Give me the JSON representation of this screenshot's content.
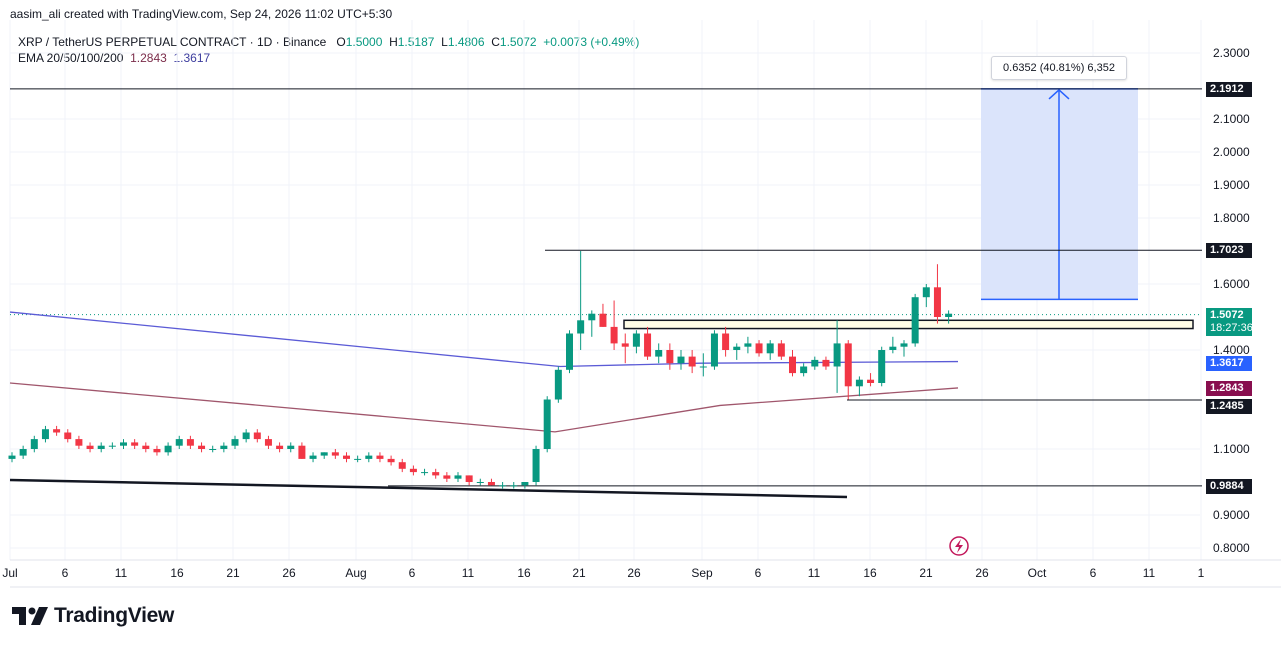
{
  "header": {
    "credit": "aasim_ali created with TradingView.com, Sep 24, 2026 11:02 UTC+5:30"
  },
  "legend": {
    "symbol": "XRP / TetherUS PERPETUAL CONTRACT · 1D · Binance",
    "o_label": "O",
    "o": "1.5000",
    "h_label": "H",
    "h": "1.5187",
    "l_label": "L",
    "l": "1.4806",
    "c_label": "C",
    "c": "1.5072",
    "change": "+0.0073 (+0.49%)",
    "ema_label": "EMA 20/50/100/200",
    "ema_a": "1.2843",
    "ema_b": "1.3617"
  },
  "measure": {
    "label": "0.6352 (40.81%) 6,352"
  },
  "price_labels": {
    "top_level": "2.1912",
    "resistance": "1.7023",
    "last_price": "1.5072",
    "countdown": "18:27:36",
    "ema_blue": "1.3617",
    "ema_maroon": "1.2843",
    "support": "1.2485",
    "base": "0.9884"
  },
  "brand": {
    "name": "TradingView"
  },
  "colors": {
    "up": "#089981",
    "down": "#f23645",
    "ema_blue": "#5b5bd6",
    "ema_maroon": "#a0566c",
    "target_fill": "#dbe4fb",
    "target_line": "#2962ff"
  },
  "chart_data": {
    "type": "candlestick",
    "y_axis_ticks": [
      "2.3000",
      "2.1000",
      "2.0000",
      "1.9000",
      "1.8000",
      "1.6000",
      "1.4000",
      "1.1000",
      "0.9000",
      "0.8000"
    ],
    "x_axis_ticks": [
      "Jul",
      "6",
      "11",
      "16",
      "21",
      "26",
      "Aug",
      "6",
      "11",
      "16",
      "21",
      "26",
      "Sep",
      "6",
      "11",
      "16",
      "21",
      "26",
      "Oct",
      "6",
      "11",
      "1"
    ],
    "ylim": [
      0.76,
      2.36
    ],
    "horizontal_levels": [
      2.1912,
      1.7023,
      1.2485,
      0.9884
    ],
    "candles": [
      [
        1.07,
        1.09,
        1.06,
        1.08
      ],
      [
        1.08,
        1.11,
        1.07,
        1.1
      ],
      [
        1.1,
        1.14,
        1.09,
        1.13
      ],
      [
        1.13,
        1.17,
        1.12,
        1.16
      ],
      [
        1.16,
        1.17,
        1.14,
        1.15
      ],
      [
        1.15,
        1.16,
        1.12,
        1.13
      ],
      [
        1.13,
        1.14,
        1.1,
        1.11
      ],
      [
        1.11,
        1.12,
        1.09,
        1.1
      ],
      [
        1.1,
        1.12,
        1.09,
        1.11
      ],
      [
        1.11,
        1.12,
        1.1,
        1.11
      ],
      [
        1.11,
        1.13,
        1.1,
        1.12
      ],
      [
        1.12,
        1.13,
        1.1,
        1.11
      ],
      [
        1.11,
        1.12,
        1.09,
        1.1
      ],
      [
        1.1,
        1.11,
        1.08,
        1.09
      ],
      [
        1.09,
        1.12,
        1.08,
        1.11
      ],
      [
        1.11,
        1.14,
        1.1,
        1.13
      ],
      [
        1.13,
        1.14,
        1.1,
        1.11
      ],
      [
        1.11,
        1.12,
        1.09,
        1.1
      ],
      [
        1.1,
        1.11,
        1.09,
        1.1
      ],
      [
        1.1,
        1.12,
        1.09,
        1.11
      ],
      [
        1.11,
        1.14,
        1.1,
        1.13
      ],
      [
        1.13,
        1.16,
        1.12,
        1.15
      ],
      [
        1.15,
        1.16,
        1.12,
        1.13
      ],
      [
        1.13,
        1.14,
        1.1,
        1.11
      ],
      [
        1.11,
        1.12,
        1.09,
        1.1
      ],
      [
        1.1,
        1.12,
        1.09,
        1.11
      ],
      [
        1.11,
        1.12,
        1.07,
        1.07
      ],
      [
        1.07,
        1.09,
        1.06,
        1.08
      ],
      [
        1.08,
        1.09,
        1.07,
        1.09
      ],
      [
        1.09,
        1.1,
        1.07,
        1.08
      ],
      [
        1.08,
        1.09,
        1.06,
        1.07
      ],
      [
        1.07,
        1.08,
        1.06,
        1.07
      ],
      [
        1.07,
        1.09,
        1.06,
        1.08
      ],
      [
        1.08,
        1.09,
        1.06,
        1.07
      ],
      [
        1.07,
        1.08,
        1.05,
        1.06
      ],
      [
        1.06,
        1.07,
        1.03,
        1.04
      ],
      [
        1.04,
        1.05,
        1.02,
        1.03
      ],
      [
        1.03,
        1.04,
        1.02,
        1.03
      ],
      [
        1.03,
        1.04,
        1.01,
        1.02
      ],
      [
        1.02,
        1.03,
        1.0,
        1.01
      ],
      [
        1.01,
        1.03,
        1.0,
        1.02
      ],
      [
        1.02,
        1.02,
        0.99,
        1.0
      ],
      [
        1.0,
        1.01,
        0.99,
        1.0
      ],
      [
        1.0,
        1.01,
        0.99,
        0.99
      ],
      [
        0.99,
        1.0,
        0.98,
        0.99
      ],
      [
        0.99,
        1.0,
        0.98,
        0.99
      ],
      [
        0.99,
        1.0,
        0.98,
        1.0
      ],
      [
        1.0,
        1.11,
        0.99,
        1.1
      ],
      [
        1.1,
        1.26,
        1.09,
        1.25
      ],
      [
        1.25,
        1.35,
        1.24,
        1.34
      ],
      [
        1.34,
        1.46,
        1.33,
        1.45
      ],
      [
        1.45,
        1.7,
        1.4,
        1.49
      ],
      [
        1.49,
        1.52,
        1.44,
        1.51
      ],
      [
        1.51,
        1.54,
        1.47,
        1.47
      ],
      [
        1.47,
        1.55,
        1.4,
        1.42
      ],
      [
        1.42,
        1.45,
        1.36,
        1.41
      ],
      [
        1.41,
        1.46,
        1.39,
        1.45
      ],
      [
        1.45,
        1.47,
        1.37,
        1.38
      ],
      [
        1.38,
        1.42,
        1.36,
        1.4
      ],
      [
        1.4,
        1.42,
        1.34,
        1.36
      ],
      [
        1.36,
        1.4,
        1.34,
        1.38
      ],
      [
        1.38,
        1.4,
        1.33,
        1.35
      ],
      [
        1.35,
        1.39,
        1.32,
        1.35
      ],
      [
        1.35,
        1.46,
        1.34,
        1.45
      ],
      [
        1.45,
        1.47,
        1.38,
        1.4
      ],
      [
        1.4,
        1.42,
        1.37,
        1.41
      ],
      [
        1.41,
        1.44,
        1.39,
        1.42
      ],
      [
        1.42,
        1.43,
        1.38,
        1.39
      ],
      [
        1.39,
        1.43,
        1.37,
        1.42
      ],
      [
        1.42,
        1.43,
        1.37,
        1.38
      ],
      [
        1.38,
        1.4,
        1.32,
        1.33
      ],
      [
        1.33,
        1.36,
        1.32,
        1.35
      ],
      [
        1.35,
        1.38,
        1.34,
        1.37
      ],
      [
        1.37,
        1.38,
        1.34,
        1.35
      ],
      [
        1.35,
        1.49,
        1.27,
        1.42
      ],
      [
        1.42,
        1.43,
        1.25,
        1.29
      ],
      [
        1.29,
        1.32,
        1.26,
        1.31
      ],
      [
        1.31,
        1.33,
        1.29,
        1.3
      ],
      [
        1.3,
        1.41,
        1.29,
        1.4
      ],
      [
        1.4,
        1.44,
        1.39,
        1.41
      ],
      [
        1.41,
        1.43,
        1.38,
        1.42
      ],
      [
        1.42,
        1.57,
        1.41,
        1.56
      ],
      [
        1.56,
        1.6,
        1.53,
        1.59
      ],
      [
        1.59,
        1.66,
        1.48,
        1.5
      ],
      [
        1.5,
        1.52,
        1.48,
        1.51
      ]
    ],
    "ema_blue_series": [
      1.515,
      1.35,
      1.36,
      1.365
    ],
    "ema_maroon_series": [
      1.3,
      1.152,
      1.232,
      1.285
    ]
  }
}
